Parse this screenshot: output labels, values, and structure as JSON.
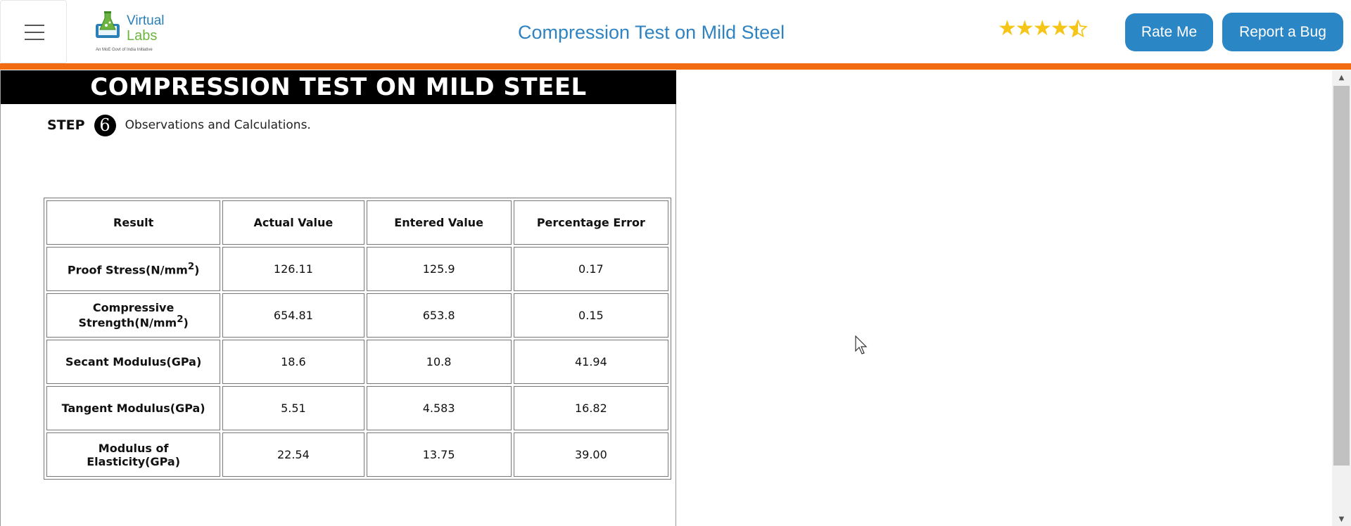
{
  "header": {
    "logo": {
      "line1": "Virtual",
      "line2": "Labs",
      "tagline": "An MoE Govt of India Initiative"
    },
    "title": "Compression Test on Mild Steel",
    "rating": {
      "value": 4.5,
      "max": 5
    },
    "rate_button": "Rate Me",
    "bug_button": "Report a Bug"
  },
  "panel": {
    "title": "COMPRESSION TEST ON MILD STEEL",
    "step": {
      "label": "STEP",
      "number": "6",
      "text": "Observations and Calculations."
    },
    "table": {
      "headers": [
        "Result",
        "Actual Value",
        "Entered Value",
        "Percentage Error"
      ],
      "rows": [
        {
          "result": "Proof Stress(N/mm",
          "sup": "2",
          "result_end": ")",
          "actual": "126.11",
          "entered": "125.9",
          "error": "0.17"
        },
        {
          "result": "Compressive Strength(N/mm",
          "sup": "2",
          "result_end": ")",
          "actual": "654.81",
          "entered": "653.8",
          "error": "0.15"
        },
        {
          "result": "Secant Modulus(GPa)",
          "sup": "",
          "result_end": "",
          "actual": "18.6",
          "entered": "10.8",
          "error": "41.94"
        },
        {
          "result": "Tangent Modulus(GPa)",
          "sup": "",
          "result_end": "",
          "actual": "5.51",
          "entered": "4.583",
          "error": "16.82"
        },
        {
          "result": "Modulus of Elasticity(GPa)",
          "sup": "",
          "result_end": "",
          "actual": "22.54",
          "entered": "13.75",
          "error": "39.00"
        }
      ]
    }
  },
  "colors": {
    "accent_orange": "#f26b11",
    "brand_blue": "#2b86c5",
    "star": "#f5c518"
  },
  "icons": {
    "menu": "hamburger-icon",
    "star": "star-icon",
    "cursor": "mouse-pointer-icon"
  }
}
